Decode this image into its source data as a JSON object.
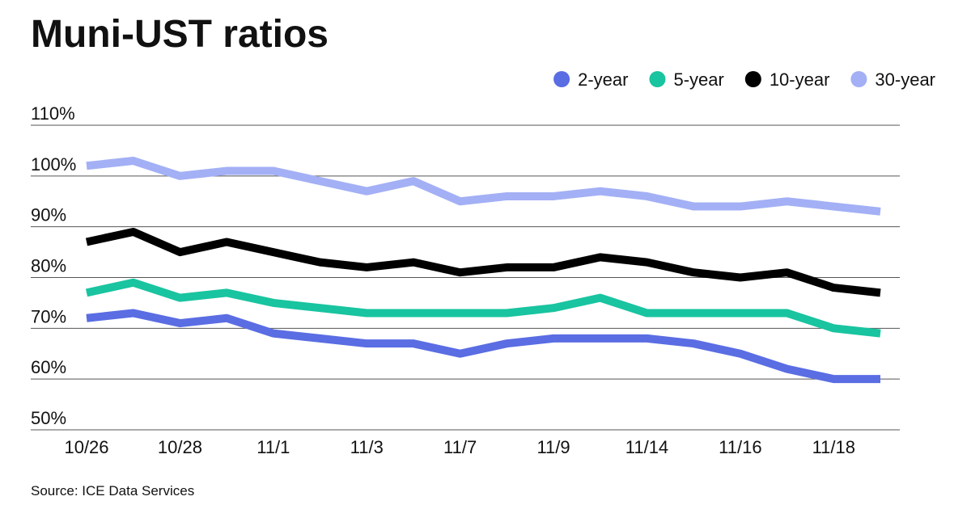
{
  "chart_data": {
    "type": "line",
    "title": "Muni-UST ratios",
    "source": "Source: ICE Data Services",
    "categories": [
      "10/26",
      null,
      "10/28",
      null,
      "11/1",
      null,
      "11/3",
      null,
      "11/7",
      null,
      "11/9",
      null,
      "11/14",
      null,
      "11/16",
      null,
      "11/18",
      null
    ],
    "series": [
      {
        "name": "2-year",
        "color": "#5a6de3",
        "values": [
          72,
          73,
          71,
          72,
          69,
          68,
          67,
          67,
          65,
          67,
          68,
          68,
          68,
          67,
          65,
          62,
          60,
          60
        ]
      },
      {
        "name": "5-year",
        "color": "#19c4a0",
        "values": [
          77,
          79,
          76,
          77,
          75,
          74,
          73,
          73,
          73,
          73,
          74,
          76,
          73,
          73,
          73,
          73,
          70,
          69
        ]
      },
      {
        "name": "10-year",
        "color": "#000000",
        "values": [
          87,
          89,
          85,
          87,
          85,
          83,
          82,
          83,
          81,
          82,
          82,
          84,
          83,
          81,
          80,
          81,
          78,
          77
        ]
      },
      {
        "name": "30-year",
        "color": "#a3b0f5",
        "values": [
          102,
          103,
          100,
          101,
          101,
          99,
          97,
          99,
          95,
          96,
          96,
          97,
          96,
          94,
          94,
          95,
          94,
          93
        ]
      }
    ],
    "ylim": [
      50,
      110
    ],
    "yticks": [
      {
        "value": 50,
        "label": "50%"
      },
      {
        "value": 60,
        "label": "60%"
      },
      {
        "value": 70,
        "label": "70%"
      },
      {
        "value": 80,
        "label": "80%"
      },
      {
        "value": 90,
        "label": "90%"
      },
      {
        "value": 100,
        "label": "100%"
      },
      {
        "value": 110,
        "label": "110%"
      }
    ],
    "grid": true,
    "legend": "top-right"
  }
}
